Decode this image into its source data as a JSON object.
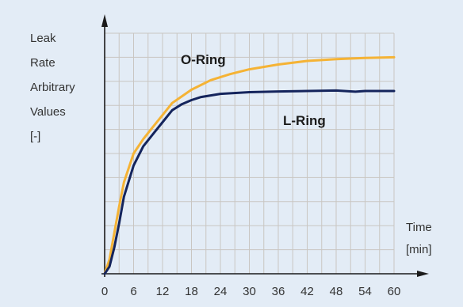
{
  "chart_data": {
    "type": "line",
    "title": "",
    "ylabel_lines": [
      "Leak",
      "Rate",
      "Arbitrary",
      "Values",
      "[-]"
    ],
    "xlabel_lines": [
      "Time",
      "[min]"
    ],
    "x_ticks": [
      "0",
      "6",
      "12",
      "18",
      "24",
      "30",
      "36",
      "42",
      "48",
      "54",
      "60"
    ],
    "xlim": [
      0,
      60
    ],
    "ylim": [
      0,
      10
    ],
    "y_unlabeled_grid_count": 10,
    "grid": true,
    "series": [
      {
        "name": "O-Ring",
        "color": "#f5b335",
        "x": [
          0,
          1,
          2,
          3,
          4,
          6,
          8,
          10,
          12,
          14,
          18,
          22,
          26,
          30,
          36,
          42,
          48,
          54,
          60
        ],
        "y": [
          0,
          0.6,
          1.7,
          2.8,
          3.8,
          5.0,
          5.6,
          6.1,
          6.6,
          7.1,
          7.65,
          8.05,
          8.3,
          8.5,
          8.7,
          8.85,
          8.92,
          8.97,
          9.0
        ]
      },
      {
        "name": "L-Ring",
        "color": "#14245c",
        "x": [
          0,
          1,
          2,
          3,
          4,
          6,
          8,
          10,
          12,
          14,
          16,
          18,
          20,
          24,
          30,
          36,
          42,
          48,
          52,
          54,
          60
        ],
        "y": [
          0,
          0.3,
          1.1,
          2.1,
          3.2,
          4.5,
          5.3,
          5.8,
          6.3,
          6.8,
          7.05,
          7.22,
          7.35,
          7.48,
          7.55,
          7.58,
          7.6,
          7.62,
          7.57,
          7.6,
          7.6
        ]
      }
    ]
  }
}
